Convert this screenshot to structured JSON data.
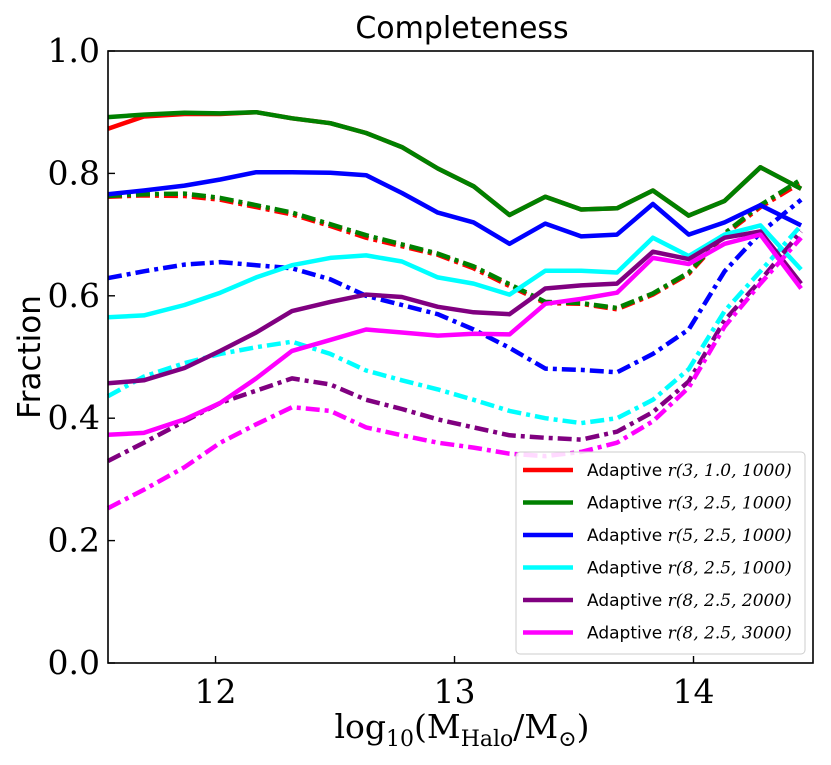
{
  "chart_data": {
    "type": "line",
    "title": "Completeness",
    "xlabel": "log₁₀(M_Halo/M⊙)",
    "xlabel_parts": {
      "pre": "log",
      "sub1": "10",
      "mid": "(M",
      "sub2": "Halo",
      "slash": "/M",
      "sub3": "⊙",
      "post": ")"
    },
    "ylabel": "Fraction",
    "xlim": [
      11.55,
      14.5
    ],
    "ylim": [
      0.0,
      1.0
    ],
    "xticks": [
      12,
      13,
      14
    ],
    "xtick_labels": [
      "12",
      "13",
      "14"
    ],
    "yticks": [
      0.0,
      0.2,
      0.4,
      0.6,
      0.8,
      1.0
    ],
    "ytick_labels": [
      "0.0",
      "0.2",
      "0.4",
      "0.6",
      "0.8",
      "1.0"
    ],
    "grid": false,
    "legend_position": "bottom-right",
    "x": [
      11.55,
      11.7,
      11.87,
      12.02,
      12.17,
      12.32,
      12.48,
      12.63,
      12.78,
      12.93,
      13.08,
      13.23,
      13.38,
      13.53,
      13.68,
      13.83,
      13.98,
      14.13,
      14.28,
      14.45
    ],
    "series": [
      {
        "name": "Adaptive r(3,1.0,1000)",
        "legend_prefix": "Adaptive ",
        "legend_math": "r(3, 1.0, 1000)",
        "color": "#ff0000",
        "solid": [
          0.873,
          0.893,
          0.897,
          0.897,
          0.9,
          0.89,
          0.882,
          0.866,
          0.843,
          0.808,
          0.779,
          0.732,
          0.762,
          0.741,
          0.743,
          0.772,
          0.731,
          0.755,
          0.81,
          0.775
        ],
        "dashdot": [
          0.762,
          0.764,
          0.763,
          0.757,
          0.745,
          0.733,
          0.714,
          0.695,
          0.681,
          0.667,
          0.645,
          0.616,
          0.588,
          0.587,
          0.578,
          0.602,
          0.636,
          0.7,
          0.745,
          0.785
        ]
      },
      {
        "name": "Adaptive r(3,2.5,1000)",
        "legend_prefix": "Adaptive ",
        "legend_math": "r(3, 2.5, 1000)",
        "color": "#008000",
        "solid": [
          0.892,
          0.896,
          0.899,
          0.898,
          0.9,
          0.89,
          0.882,
          0.866,
          0.843,
          0.808,
          0.779,
          0.732,
          0.762,
          0.741,
          0.743,
          0.772,
          0.731,
          0.755,
          0.81,
          0.775
        ],
        "dashdot": [
          0.763,
          0.766,
          0.767,
          0.76,
          0.748,
          0.736,
          0.717,
          0.699,
          0.684,
          0.669,
          0.648,
          0.619,
          0.59,
          0.588,
          0.58,
          0.604,
          0.638,
          0.702,
          0.748,
          0.79
        ]
      },
      {
        "name": "Adaptive r(5,2.5,1000)",
        "legend_prefix": "Adaptive ",
        "legend_math": "r(5, 2.5, 1000)",
        "color": "#0000ff",
        "solid": [
          0.766,
          0.772,
          0.78,
          0.79,
          0.802,
          0.802,
          0.801,
          0.797,
          0.768,
          0.736,
          0.72,
          0.685,
          0.718,
          0.697,
          0.7,
          0.75,
          0.7,
          0.72,
          0.748,
          0.715
        ],
        "dashdot": [
          0.629,
          0.64,
          0.651,
          0.655,
          0.65,
          0.645,
          0.627,
          0.6,
          0.585,
          0.57,
          0.545,
          0.515,
          0.481,
          0.479,
          0.475,
          0.505,
          0.545,
          0.64,
          0.703,
          0.757
        ]
      },
      {
        "name": "Adaptive r(8,2.5,1000)",
        "legend_prefix": "Adaptive ",
        "legend_math": "r(8, 2.5, 1000)",
        "color": "#00ffff",
        "solid": [
          0.565,
          0.568,
          0.585,
          0.605,
          0.63,
          0.65,
          0.662,
          0.666,
          0.656,
          0.63,
          0.62,
          0.602,
          0.641,
          0.641,
          0.638,
          0.695,
          0.665,
          0.7,
          0.715,
          0.643
        ],
        "dashdot": [
          0.436,
          0.468,
          0.49,
          0.505,
          0.516,
          0.525,
          0.505,
          0.478,
          0.462,
          0.447,
          0.43,
          0.412,
          0.4,
          0.392,
          0.4,
          0.43,
          0.48,
          0.575,
          0.64,
          0.715
        ]
      },
      {
        "name": "Adaptive r(8,2.5,2000)",
        "legend_prefix": "Adaptive ",
        "legend_math": "r(8, 2.5, 2000)",
        "color": "#800080",
        "solid": [
          0.457,
          0.462,
          0.482,
          0.51,
          0.54,
          0.575,
          0.59,
          0.602,
          0.598,
          0.582,
          0.573,
          0.57,
          0.612,
          0.617,
          0.62,
          0.672,
          0.66,
          0.695,
          0.705,
          0.62
        ],
        "dashdot": [
          0.33,
          0.36,
          0.395,
          0.425,
          0.445,
          0.465,
          0.455,
          0.43,
          0.415,
          0.398,
          0.385,
          0.372,
          0.368,
          0.365,
          0.378,
          0.41,
          0.46,
          0.56,
          0.625,
          0.705
        ]
      },
      {
        "name": "Adaptive r(8,2.5,3000)",
        "legend_prefix": "Adaptive ",
        "legend_math": "r(8, 2.5, 3000)",
        "color": "#ff00ff",
        "solid": [
          0.373,
          0.376,
          0.398,
          0.425,
          0.465,
          0.51,
          0.528,
          0.545,
          0.54,
          0.535,
          0.538,
          0.537,
          0.587,
          0.595,
          0.605,
          0.662,
          0.652,
          0.685,
          0.7,
          0.612
        ],
        "dashdot": [
          0.253,
          0.283,
          0.32,
          0.36,
          0.39,
          0.418,
          0.412,
          0.385,
          0.372,
          0.36,
          0.352,
          0.342,
          0.338,
          0.345,
          0.36,
          0.395,
          0.45,
          0.55,
          0.62,
          0.695
        ]
      }
    ]
  }
}
